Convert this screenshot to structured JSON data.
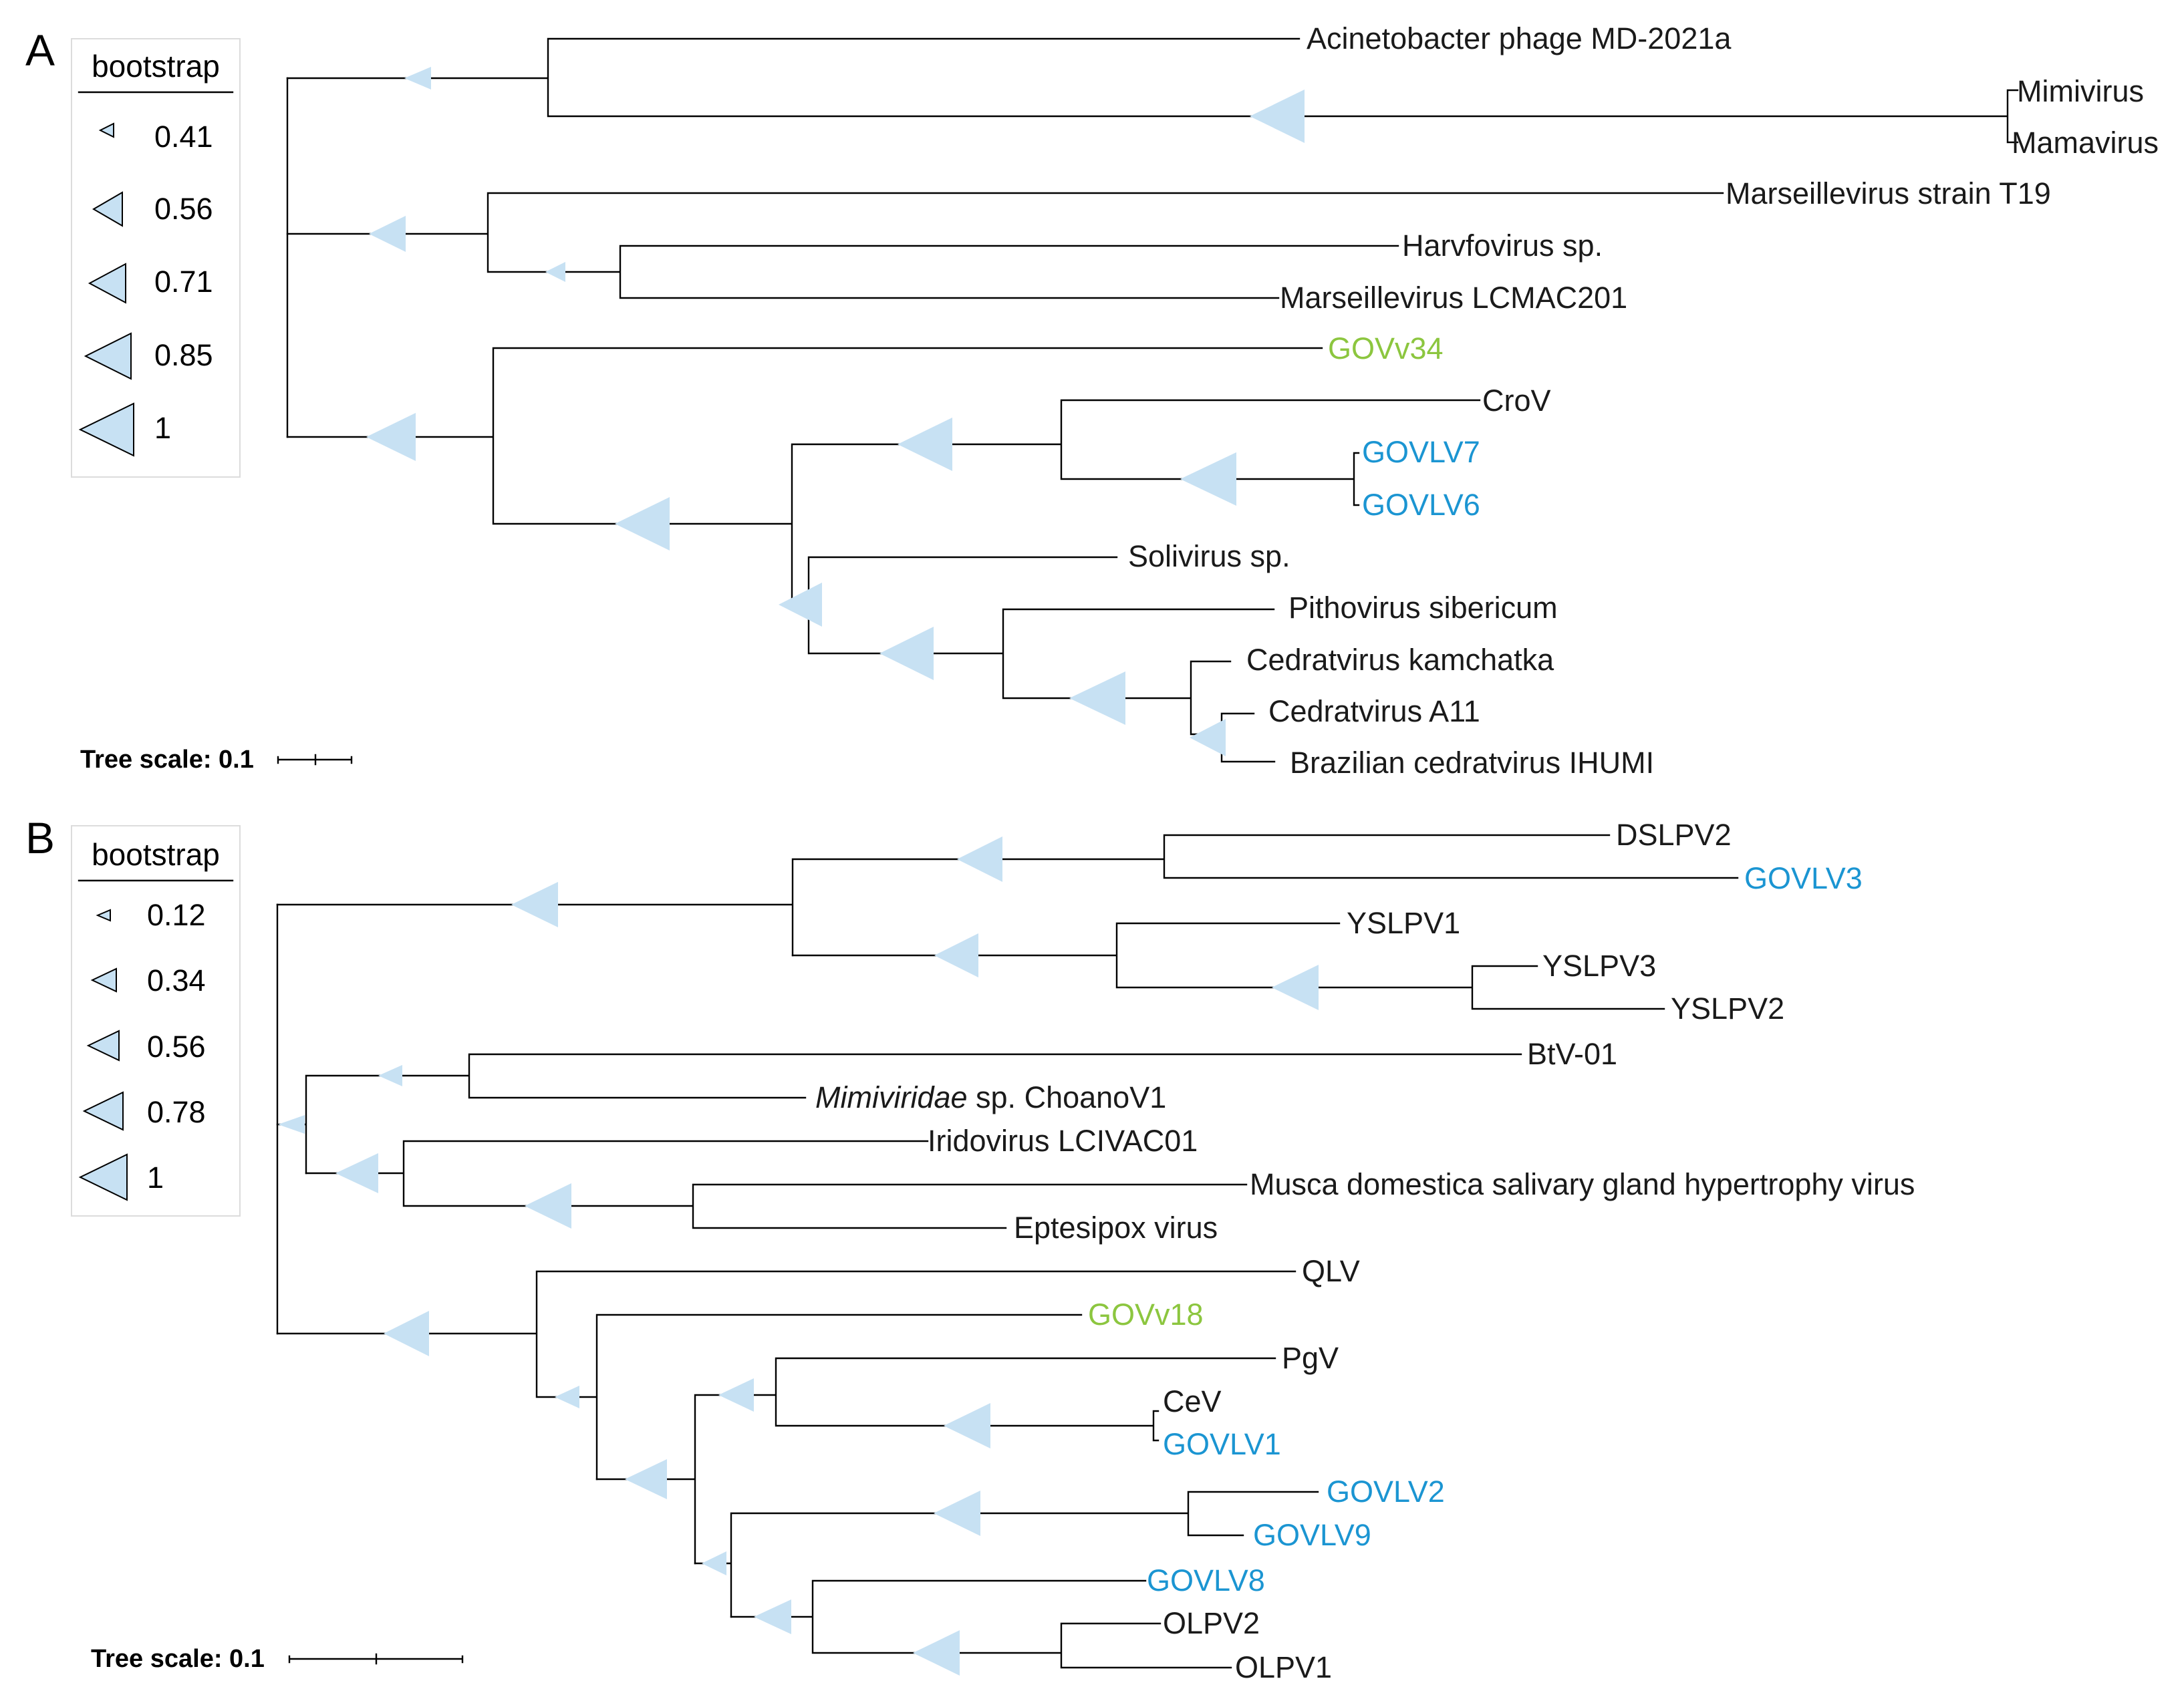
{
  "colors": {
    "black": "#1a1a1a",
    "green": "#8cc63f",
    "blue": "#1b95d2",
    "triangle": "#c7e1f3"
  },
  "panelA": {
    "label": "A",
    "legend": {
      "title": "bootstrap",
      "values": [
        "0.41",
        "0.56",
        "0.71",
        "0.85",
        "1"
      ]
    },
    "scale": {
      "label": "Tree scale: 0.1"
    },
    "leaves": [
      {
        "text": "Acinetobacter phage MD-2021a",
        "color": "black"
      },
      {
        "text": "Mimivirus",
        "color": "black"
      },
      {
        "text": "Mamavirus",
        "color": "black"
      },
      {
        "text": "Marseillevirus strain T19",
        "color": "black"
      },
      {
        "text": "Harvfovirus sp.",
        "color": "black"
      },
      {
        "text": "Marseillevirus LCMAC201",
        "color": "black"
      },
      {
        "text": "GOVv34",
        "color": "green"
      },
      {
        "text": "CroV",
        "color": "black"
      },
      {
        "text": "GOVLV7",
        "color": "blue"
      },
      {
        "text": "GOVLV6",
        "color": "blue"
      },
      {
        "text": "Solivirus sp.",
        "color": "black"
      },
      {
        "text": "Pithovirus sibericum",
        "color": "black"
      },
      {
        "text": "Cedratvirus kamchatka",
        "color": "black"
      },
      {
        "text": "Cedratvirus A11",
        "color": "black"
      },
      {
        "text": "Brazilian cedratvirus IHUMI",
        "color": "black"
      }
    ]
  },
  "panelB": {
    "label": "B",
    "legend": {
      "title": "bootstrap",
      "values": [
        "0.12",
        "0.34",
        "0.56",
        "0.78",
        "1"
      ]
    },
    "scale": {
      "label": "Tree scale: 0.1"
    },
    "leaves": [
      {
        "text": "DSLPV2",
        "color": "black"
      },
      {
        "text": "GOVLV3",
        "color": "blue"
      },
      {
        "text": "YSLPV1",
        "color": "black"
      },
      {
        "text": "YSLPV3",
        "color": "black"
      },
      {
        "text": "YSLPV2",
        "color": "black"
      },
      {
        "text": "BtV-01",
        "color": "black"
      },
      {
        "text": "Mimiviridae",
        "text2": " sp. ChoanoV1",
        "color": "black"
      },
      {
        "text": "Iridovirus LCIVAC01",
        "color": "black"
      },
      {
        "text": "Musca domestica salivary gland hypertrophy virus",
        "color": "black"
      },
      {
        "text": "Eptesipox virus",
        "color": "black"
      },
      {
        "text": "QLV",
        "color": "black"
      },
      {
        "text": "GOVv18",
        "color": "green"
      },
      {
        "text": "PgV",
        "color": "black"
      },
      {
        "text": "CeV",
        "color": "black"
      },
      {
        "text": "GOVLV1",
        "color": "blue"
      },
      {
        "text": "GOVLV2",
        "color": "blue"
      },
      {
        "text": "GOVLV9",
        "color": "blue"
      },
      {
        "text": "GOVLV8",
        "color": "blue"
      },
      {
        "text": "OLPV2",
        "color": "black"
      },
      {
        "text": "OLPV1",
        "color": "black"
      }
    ]
  }
}
